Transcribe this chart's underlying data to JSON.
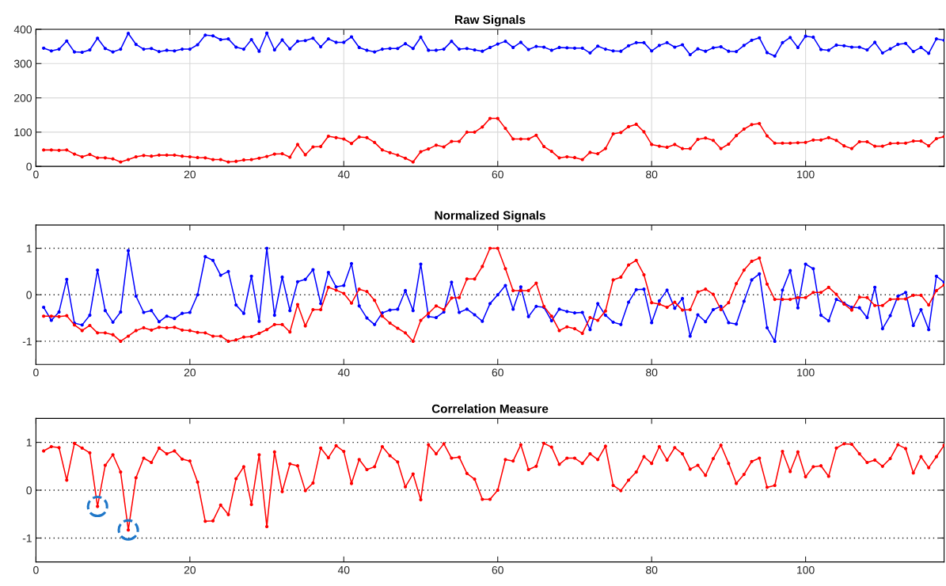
{
  "chart_data": [
    {
      "type": "line",
      "title": "Raw Signals",
      "xlim": [
        0,
        118
      ],
      "xticks": [
        0,
        20,
        40,
        60,
        80,
        100
      ],
      "ylim": [
        0,
        400
      ],
      "yticks": [
        0,
        100,
        200,
        300,
        400
      ],
      "grid": true,
      "marker": "circle",
      "line_style": "solid",
      "x": [
        1,
        2,
        3,
        4,
        5,
        6,
        7,
        8,
        9,
        10,
        11,
        12,
        13,
        14,
        15,
        16,
        17,
        18,
        19,
        20,
        21,
        22,
        23,
        24,
        25,
        26,
        27,
        28,
        29,
        30,
        31,
        32,
        33,
        34,
        35,
        36,
        37,
        38,
        39,
        40,
        41,
        42,
        43,
        44,
        45,
        46,
        47,
        48,
        49,
        50,
        51,
        52,
        53,
        54,
        55,
        56,
        57,
        58,
        59,
        60,
        61,
        62,
        63,
        64,
        65,
        66,
        67,
        68,
        69,
        70,
        71,
        72,
        73,
        74,
        75,
        76,
        77,
        78,
        79,
        80,
        81,
        82,
        83,
        84,
        85,
        86,
        87,
        88,
        89,
        90,
        91,
        92,
        93,
        94,
        95,
        96,
        97,
        98,
        99,
        100,
        101,
        102,
        103,
        104,
        105,
        106,
        107,
        108,
        109,
        110,
        111,
        112,
        113,
        114,
        115,
        116,
        117,
        118
      ],
      "series": [
        {
          "color": "#0000ff",
          "values": [
            345,
            337,
            342,
            366,
            334,
            333,
            340,
            374,
            344,
            334,
            342,
            388,
            356,
            342,
            344,
            335,
            339,
            337,
            342,
            342,
            355,
            383,
            381,
            370,
            372,
            348,
            342,
            370,
            336,
            389,
            340,
            369,
            343,
            365,
            367,
            374,
            349,
            372,
            362,
            362,
            378,
            347,
            339,
            334,
            342,
            344,
            344,
            358,
            344,
            377,
            339,
            339,
            342,
            365,
            342,
            344,
            340,
            336,
            347,
            357,
            365,
            347,
            362,
            341,
            350,
            348,
            339,
            347,
            346,
            345,
            345,
            331,
            351,
            342,
            337,
            336,
            352,
            361,
            361,
            337,
            353,
            361,
            348,
            355,
            326,
            343,
            336,
            346,
            349,
            336,
            335,
            353,
            368,
            375,
            332,
            322,
            361,
            376,
            347,
            380,
            377,
            341,
            339,
            354,
            352,
            348,
            348,
            340,
            362,
            331,
            343,
            356,
            359,
            335,
            347,
            330,
            372,
            368
          ]
        },
        {
          "color": "#ff0000",
          "values": [
            48,
            48,
            47,
            48,
            36,
            28,
            35,
            25,
            25,
            22,
            13,
            20,
            28,
            32,
            30,
            33,
            33,
            33,
            30,
            28,
            26,
            25,
            20,
            20,
            13,
            15,
            19,
            20,
            24,
            29,
            36,
            37,
            27,
            64,
            34,
            57,
            58,
            88,
            84,
            80,
            67,
            86,
            84,
            70,
            48,
            40,
            33,
            24,
            13,
            43,
            51,
            62,
            57,
            73,
            73,
            100,
            100,
            115,
            140,
            140,
            111,
            80,
            80,
            80,
            91,
            58,
            44,
            25,
            28,
            26,
            20,
            41,
            37,
            52,
            95,
            99,
            116,
            123,
            101,
            64,
            59,
            56,
            64,
            52,
            52,
            79,
            83,
            76,
            52,
            65,
            90,
            109,
            122,
            125,
            89,
            68,
            68,
            68,
            69,
            70,
            77,
            77,
            84,
            76,
            60,
            52,
            72,
            72,
            59,
            59,
            67,
            68,
            68,
            74,
            74,
            60,
            81,
            87
          ]
        }
      ]
    },
    {
      "type": "line",
      "title": "Normalized Signals",
      "xlim": [
        0,
        118
      ],
      "xticks": [
        0,
        20,
        40,
        60,
        80,
        100
      ],
      "ylim": [
        -1.5,
        1.5
      ],
      "yticks": [
        -1,
        0,
        1
      ],
      "grid": "y",
      "marker": "circle",
      "line_style": "solid",
      "x": [
        1,
        2,
        3,
        4,
        5,
        6,
        7,
        8,
        9,
        10,
        11,
        12,
        13,
        14,
        15,
        16,
        17,
        18,
        19,
        20,
        21,
        22,
        23,
        24,
        25,
        26,
        27,
        28,
        29,
        30,
        31,
        32,
        33,
        34,
        35,
        36,
        37,
        38,
        39,
        40,
        41,
        42,
        43,
        44,
        45,
        46,
        47,
        48,
        49,
        50,
        51,
        52,
        53,
        54,
        55,
        56,
        57,
        58,
        59,
        60,
        61,
        62,
        63,
        64,
        65,
        66,
        67,
        68,
        69,
        70,
        71,
        72,
        73,
        74,
        75,
        76,
        77,
        78,
        79,
        80,
        81,
        82,
        83,
        84,
        85,
        86,
        87,
        88,
        89,
        90,
        91,
        92,
        93,
        94,
        95,
        96,
        97,
        98,
        99,
        100,
        101,
        102,
        103,
        104,
        105,
        106,
        107,
        108,
        109,
        110,
        111,
        112,
        113,
        114,
        115,
        116,
        117,
        118
      ],
      "series": [
        {
          "color": "#0000ff",
          "values": [
            -0.27,
            -0.55,
            -0.37,
            0.33,
            -0.61,
            -0.65,
            -0.44,
            0.53,
            -0.34,
            -0.59,
            -0.37,
            0.95,
            -0.03,
            -0.38,
            -0.34,
            -0.58,
            -0.46,
            -0.51,
            -0.4,
            -0.38,
            0.0,
            0.82,
            0.74,
            0.42,
            0.5,
            -0.22,
            -0.4,
            0.4,
            -0.57,
            1.0,
            -0.44,
            0.38,
            -0.34,
            0.28,
            0.33,
            0.54,
            -0.19,
            0.48,
            0.17,
            0.2,
            0.67,
            -0.24,
            -0.5,
            -0.64,
            -0.39,
            -0.33,
            -0.31,
            0.09,
            -0.34,
            0.66,
            -0.47,
            -0.49,
            -0.37,
            0.27,
            -0.38,
            -0.31,
            -0.43,
            -0.57,
            -0.19,
            0.0,
            0.2,
            -0.31,
            0.17,
            -0.47,
            -0.25,
            -0.27,
            -0.56,
            -0.31,
            -0.36,
            -0.39,
            -0.38,
            -0.75,
            -0.19,
            -0.44,
            -0.59,
            -0.64,
            -0.16,
            0.11,
            0.12,
            -0.6,
            -0.13,
            0.1,
            -0.29,
            -0.08,
            -0.89,
            -0.43,
            -0.58,
            -0.32,
            -0.25,
            -0.6,
            -0.63,
            -0.14,
            0.32,
            0.45,
            -0.71,
            -1.0,
            0.1,
            0.52,
            -0.28,
            0.66,
            0.56,
            -0.44,
            -0.56,
            -0.1,
            -0.18,
            -0.27,
            -0.28,
            -0.49,
            0.16,
            -0.73,
            -0.45,
            -0.03,
            0.05,
            -0.66,
            -0.32,
            -0.75,
            0.4,
            0.27
          ]
        },
        {
          "color": "#ff0000",
          "values": [
            -0.46,
            -0.46,
            -0.47,
            -0.45,
            -0.65,
            -0.77,
            -0.66,
            -0.82,
            -0.82,
            -0.86,
            -1.0,
            -0.89,
            -0.77,
            -0.71,
            -0.76,
            -0.7,
            -0.71,
            -0.7,
            -0.76,
            -0.77,
            -0.81,
            -0.82,
            -0.89,
            -0.89,
            -1.0,
            -0.97,
            -0.91,
            -0.9,
            -0.83,
            -0.75,
            -0.64,
            -0.64,
            -0.8,
            -0.21,
            -0.67,
            -0.32,
            -0.32,
            0.16,
            0.1,
            0.03,
            -0.18,
            0.12,
            0.07,
            -0.12,
            -0.46,
            -0.61,
            -0.72,
            -0.82,
            -1.0,
            -0.55,
            -0.4,
            -0.24,
            -0.32,
            -0.07,
            -0.06,
            0.34,
            0.34,
            0.61,
            1.0,
            1.0,
            0.56,
            0.09,
            0.09,
            0.09,
            0.25,
            -0.25,
            -0.46,
            -0.77,
            -0.69,
            -0.73,
            -0.83,
            -0.49,
            -0.55,
            -0.35,
            0.32,
            0.38,
            0.64,
            0.74,
            0.43,
            -0.17,
            -0.2,
            -0.27,
            -0.16,
            -0.33,
            -0.32,
            0.06,
            0.12,
            0.01,
            -0.32,
            -0.17,
            0.24,
            0.53,
            0.72,
            0.79,
            0.23,
            -0.1,
            -0.1,
            -0.1,
            -0.06,
            -0.06,
            0.05,
            0.05,
            0.16,
            0.01,
            -0.2,
            -0.33,
            -0.05,
            -0.06,
            -0.23,
            -0.23,
            -0.1,
            -0.09,
            -0.09,
            -0.01,
            -0.01,
            -0.22,
            0.09,
            0.21
          ]
        }
      ]
    },
    {
      "type": "line",
      "title": "Correlation Measure",
      "xlim": [
        0,
        118
      ],
      "xticks": [
        0,
        20,
        40,
        60,
        80,
        100
      ],
      "ylim": [
        -1.5,
        1.5
      ],
      "yticks": [
        -1,
        0,
        1
      ],
      "grid": "y",
      "marker": "circle",
      "line_style": "solid",
      "x": [
        1,
        2,
        3,
        4,
        5,
        6,
        7,
        8,
        9,
        10,
        11,
        12,
        13,
        14,
        15,
        16,
        17,
        18,
        19,
        20,
        21,
        22,
        23,
        24,
        25,
        26,
        27,
        28,
        29,
        30,
        31,
        32,
        33,
        34,
        35,
        36,
        37,
        38,
        39,
        40,
        41,
        42,
        43,
        44,
        45,
        46,
        47,
        48,
        49,
        50,
        51,
        52,
        53,
        54,
        55,
        56,
        57,
        58,
        59,
        60,
        61,
        62,
        63,
        64,
        65,
        66,
        67,
        68,
        69,
        70,
        71,
        72,
        73,
        74,
        75,
        76,
        77,
        78,
        79,
        80,
        81,
        82,
        83,
        84,
        85,
        86,
        87,
        88,
        89,
        90,
        91,
        92,
        93,
        94,
        95,
        96,
        97,
        98,
        99,
        100,
        101,
        102,
        103,
        104,
        105,
        106,
        107,
        108,
        109,
        110,
        111,
        112,
        113,
        114,
        115,
        116,
        117,
        118
      ],
      "series": [
        {
          "color": "#ff0000",
          "values": [
            0.82,
            0.91,
            0.89,
            0.21,
            0.98,
            0.88,
            0.78,
            -0.34,
            0.52,
            0.74,
            0.38,
            -0.83,
            0.26,
            0.67,
            0.58,
            0.88,
            0.76,
            0.82,
            0.65,
            0.61,
            0.17,
            -0.65,
            -0.64,
            -0.31,
            -0.51,
            0.24,
            0.49,
            -0.3,
            0.74,
            -0.76,
            0.8,
            -0.03,
            0.55,
            0.51,
            -0.01,
            0.15,
            0.88,
            0.68,
            0.93,
            0.81,
            0.14,
            0.64,
            0.43,
            0.49,
            0.91,
            0.72,
            0.59,
            0.07,
            0.34,
            -0.2,
            0.95,
            0.76,
            0.97,
            0.67,
            0.69,
            0.35,
            0.23,
            -0.19,
            -0.19,
            0.0,
            0.64,
            0.61,
            0.95,
            0.43,
            0.5,
            0.98,
            0.9,
            0.54,
            0.67,
            0.67,
            0.56,
            0.76,
            0.64,
            0.92,
            0.1,
            -0.01,
            0.21,
            0.38,
            0.7,
            0.56,
            0.91,
            0.63,
            0.89,
            0.76,
            0.44,
            0.52,
            0.31,
            0.66,
            0.94,
            0.56,
            0.14,
            0.33,
            0.6,
            0.67,
            0.06,
            0.1,
            0.81,
            0.39,
            0.8,
            0.28,
            0.49,
            0.51,
            0.29,
            0.88,
            0.97,
            0.96,
            0.76,
            0.58,
            0.63,
            0.5,
            0.66,
            0.95,
            0.87,
            0.36,
            0.7,
            0.47,
            0.7,
            0.94
          ]
        },
        {
          "type": "scatter",
          "color": "#1f77c8",
          "marker": "circle",
          "line_style": "dashed",
          "x": [
            8,
            12
          ],
          "values": [
            -0.34,
            -0.83
          ]
        }
      ]
    }
  ]
}
